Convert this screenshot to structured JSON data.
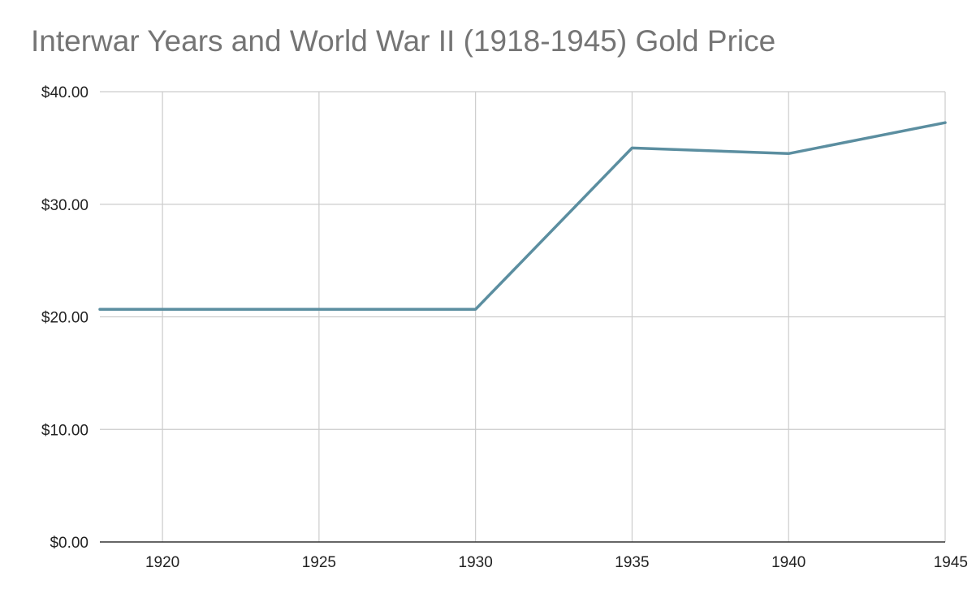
{
  "chart_data": {
    "type": "line",
    "title": "Interwar Years and World War II (1918-1945) Gold Price",
    "xlabel": "",
    "ylabel": "",
    "x": [
      1918,
      1920,
      1925,
      1930,
      1935,
      1940,
      1945
    ],
    "series": [
      {
        "values": [
          20.67,
          20.67,
          20.67,
          20.67,
          35.0,
          34.5,
          37.25
        ]
      }
    ],
    "xlim": [
      1918,
      1945
    ],
    "ylim": [
      0,
      40
    ],
    "xticks": [
      1920,
      1925,
      1930,
      1935,
      1940,
      1945
    ],
    "yticks": [
      0,
      10,
      20,
      30,
      40
    ],
    "ytick_labels": [
      "$0.00",
      "$10.00",
      "$20.00",
      "$30.00",
      "$40.00"
    ],
    "grid": true,
    "colors": {
      "line": "#5b8ea0",
      "grid": "#cccccc",
      "axis": "#333333",
      "title": "#757575"
    }
  }
}
